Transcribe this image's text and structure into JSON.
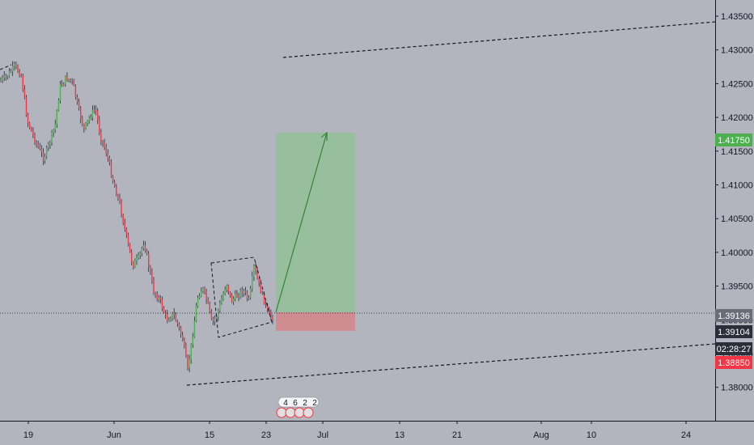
{
  "chart_data": {
    "type": "candlestick",
    "price_axis": {
      "ticks": [
        "1.43500",
        "1.43000",
        "1.42500",
        "1.42000",
        "1.41500",
        "1.41000",
        "1.40500",
        "1.40000",
        "1.39500",
        "1.39000",
        "1.38500",
        "1.38000"
      ],
      "range": [
        1.3755,
        1.4375
      ]
    },
    "time_axis": {
      "ticks": [
        "19",
        "Jun",
        "15",
        "23",
        "Jul",
        "13",
        "21",
        "Aug",
        "10",
        "24"
      ]
    },
    "price_tags": [
      {
        "label": "1.41750",
        "value": 1.4175,
        "kind": "target",
        "color": "#4caf50"
      },
      {
        "label": "1.39136",
        "value": 1.39136,
        "kind": "crosshair",
        "color": "#6a6d78"
      },
      {
        "label": "1.39104",
        "value": 1.39104,
        "kind": "last-price",
        "color": "#2a2e39"
      },
      {
        "label": "02:28:27",
        "value": 1.3889,
        "kind": "countdown",
        "color": "#2a2e39"
      },
      {
        "label": "1.38850",
        "value": 1.3885,
        "kind": "stop",
        "color": "#f23645"
      }
    ],
    "position": {
      "side": "long",
      "entry": 1.3913,
      "take_profit": 1.4175,
      "stop_loss": 1.3885,
      "profit_color": "#81c784",
      "loss_color": "#e57373"
    },
    "events_badge": [
      "4",
      "6",
      "2",
      "2"
    ],
    "colors": {
      "up": "#4caf50",
      "down": "#f23645",
      "wick": "#131722",
      "background": "#b2b5be",
      "axis_border": "#131722"
    }
  }
}
